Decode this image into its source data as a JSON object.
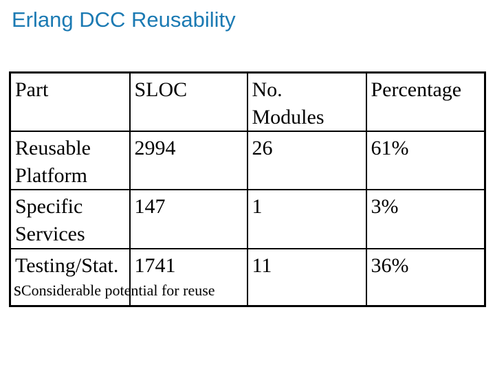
{
  "slide": {
    "title": "Erlang DCC Reusability",
    "bullet": {
      "marker": "s",
      "text": "Considerable potential for reuse"
    }
  },
  "table": {
    "headers": [
      "Part",
      "SLOC",
      "No.\nModules",
      "Percentage"
    ],
    "rows": [
      {
        "cells": [
          "Reusable\nPlatform",
          "2994",
          "26",
          "61%"
        ]
      },
      {
        "cells": [
          "Specific\nServices",
          "147",
          "1",
          "3%"
        ]
      },
      {
        "cells": [
          "Testing/Stat.",
          "1741",
          "11",
          "36%"
        ]
      }
    ]
  },
  "colors": {
    "title": "#1B7AB3",
    "highlight": "#C01818",
    "text": "#000000",
    "border": "#000000",
    "background": "#FFFFFF"
  }
}
